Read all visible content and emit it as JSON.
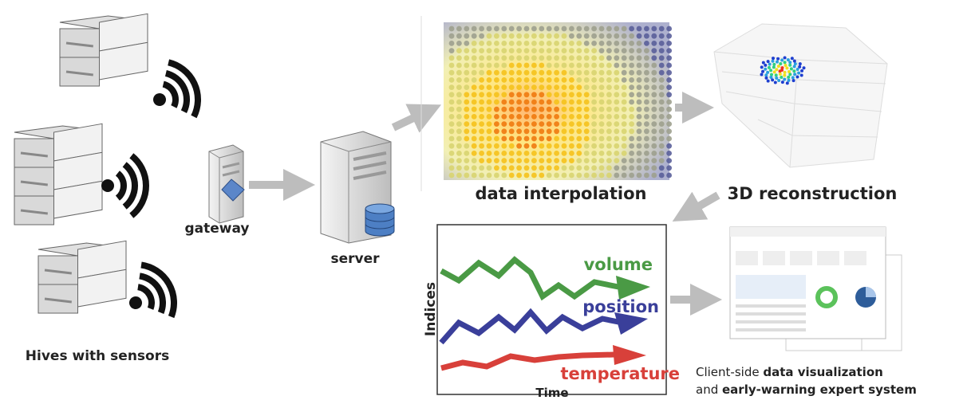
{
  "hives": {
    "label": "Hives with sensors"
  },
  "gateway": {
    "label": "gateway"
  },
  "server": {
    "label": "server"
  },
  "interpolation": {
    "label": "data interpolation"
  },
  "reconstruction": {
    "label": "3D reconstruction"
  },
  "indices_chart": {
    "y_label": "Indices",
    "x_label": "Time",
    "series": [
      "volume",
      "position",
      "temperature"
    ]
  },
  "client": {
    "lines": [
      [
        "Client-side ",
        "data visualization"
      ],
      [
        "and ",
        "early-warning expert system"
      ]
    ]
  }
}
